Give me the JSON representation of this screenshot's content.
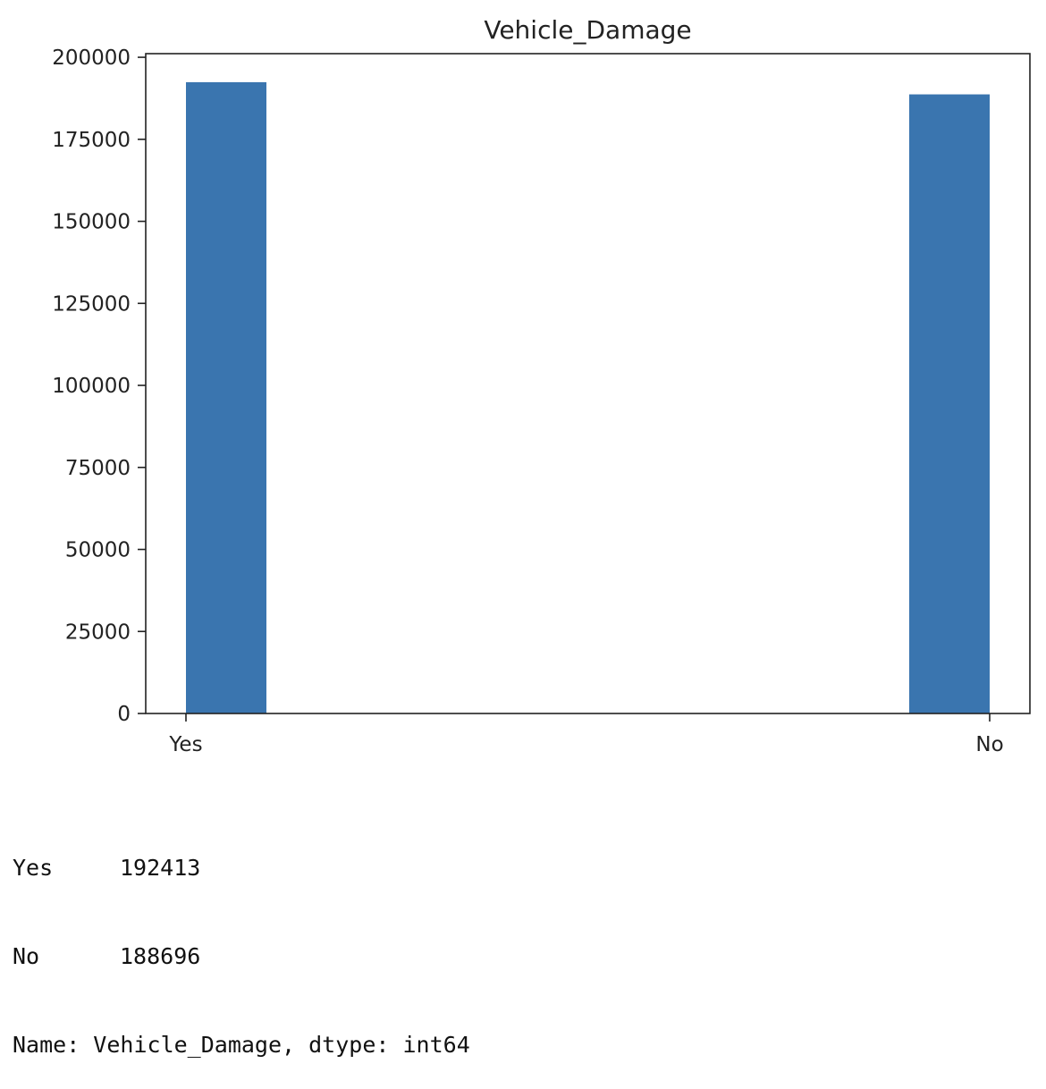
{
  "chart_data": {
    "type": "bar",
    "title": "Vehicle_Damage",
    "xlabel": "",
    "ylabel": "",
    "categories": [
      "Yes",
      "No"
    ],
    "values": [
      192413,
      188696
    ],
    "ylim": [
      0,
      201109
    ],
    "yticks": [
      0,
      25000,
      50000,
      75000,
      100000,
      125000,
      150000,
      175000,
      200000
    ],
    "grid": false,
    "legend": "none",
    "bar_color": "#3a75af"
  },
  "output": {
    "rows": [
      {
        "label": "Yes",
        "value": "192413"
      },
      {
        "label": "No",
        "value": "188696"
      }
    ],
    "footer": "Name: Vehicle_Damage, dtype: int64"
  }
}
